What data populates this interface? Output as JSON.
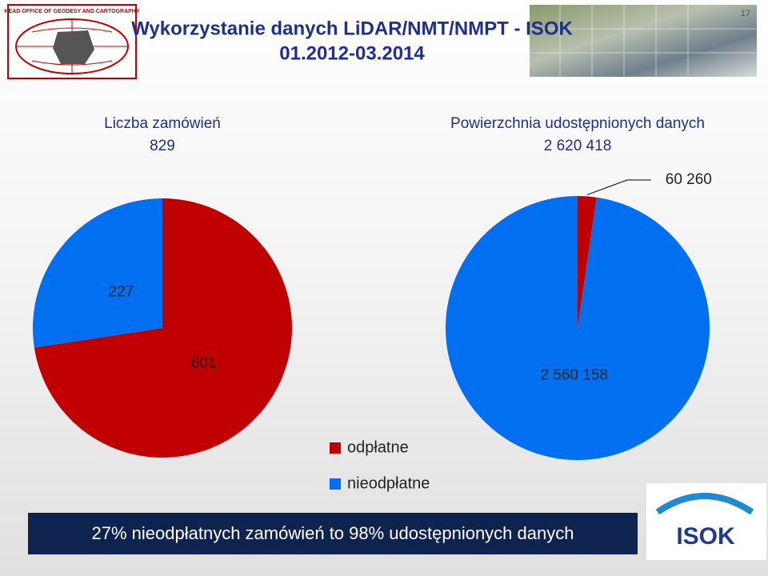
{
  "header": {
    "title": "Wykorzystanie danych LiDAR/NMT/NMPT - ISOK",
    "subtitle": "01.2012-03.2014",
    "logo_text": "HEAD OFFICE OF GEODESY AND CARTOGRAPHY",
    "slide_number": "17"
  },
  "chart_data": [
    {
      "type": "pie",
      "title": "Liczba zamówień",
      "total": "829",
      "categories": [
        "odpłatne",
        "nieodpłatne"
      ],
      "values": [
        601,
        227
      ],
      "colors": [
        "#c00000",
        "#0070f0"
      ]
    },
    {
      "type": "pie",
      "title": "Powierzchnia udostępnionych danych",
      "total": "2 620 418",
      "categories": [
        "odpłatne",
        "nieodpłatne"
      ],
      "values": [
        60260,
        2560158
      ],
      "value_labels": [
        "60 260",
        "2 560 158"
      ],
      "colors": [
        "#c00000",
        "#0070f0"
      ]
    }
  ],
  "footer": {
    "text": "27% nieodpłatnych zamówień to 98% udostępnionych danych",
    "logo": "ISOK"
  }
}
